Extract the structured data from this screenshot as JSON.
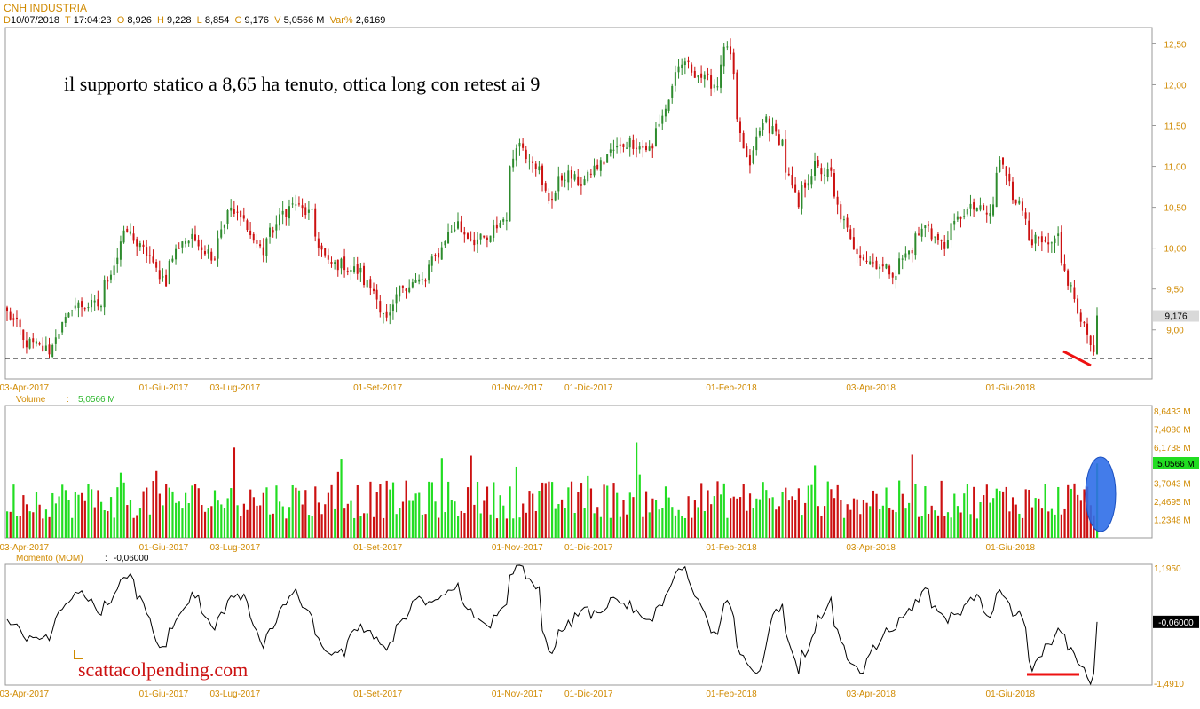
{
  "header": {
    "symbol": "CNH INDUSTRIA",
    "date_key": "D",
    "date": "10/07/2018",
    "time_key": "T",
    "time": "17:04:23",
    "open_key": "O",
    "open": "8,926",
    "high_key": "H",
    "high": "9,228",
    "low_key": "L",
    "low": "8,854",
    "close_key": "C",
    "close": "9,176",
    "vol_key": "V",
    "volume": "5,0566 M",
    "var_key": "Var%",
    "var": "2,6169"
  },
  "annotation": "il supporto statico a 8,65 ha tenuto, ottica long con retest ai 9",
  "watermark": "scattacolpending.com",
  "colors": {
    "up": "#2e8b2e",
    "down": "#cc1111",
    "vol_up": "#22dd22",
    "vol_down": "#cc1111",
    "axis_text": "#d08a00",
    "mark": "#ee1111",
    "ellipse": "#2f6ee8"
  },
  "x_ticks": [
    "03-Apr-2017",
    "01-Giu-2017",
    "03-Lug-2017",
    "01-Set-2017",
    "01-Nov-2017",
    "01-Dic-2017",
    "01-Feb-2018",
    "03-Apr-2018",
    "01-Giu-2018"
  ],
  "chart_data": [
    {
      "type": "candlestick",
      "title": "",
      "ylim": [
        8.4,
        12.7
      ],
      "yticks": [
        "12,50",
        "12,00",
        "11,50",
        "11,00",
        "10,50",
        "10,00",
        "9,50",
        "9,00"
      ],
      "ytick_values": [
        12.5,
        12.0,
        11.5,
        11.0,
        10.5,
        10.0,
        9.5,
        9.0
      ],
      "last_price_label": "9,176",
      "last_price": 9.176,
      "support_level": 8.65,
      "anchors": [
        {
          "d": "2017-03-27",
          "v": 9.2
        },
        {
          "d": "2017-04-03",
          "v": 8.85
        },
        {
          "d": "2017-04-13",
          "v": 8.75
        },
        {
          "d": "2017-04-24",
          "v": 9.3
        },
        {
          "d": "2017-05-05",
          "v": 9.3
        },
        {
          "d": "2017-05-12",
          "v": 9.9
        },
        {
          "d": "2017-05-17",
          "v": 10.2
        },
        {
          "d": "2017-05-26",
          "v": 9.9
        },
        {
          "d": "2017-06-02",
          "v": 9.6
        },
        {
          "d": "2017-06-09",
          "v": 10.1
        },
        {
          "d": "2017-06-16",
          "v": 10.1
        },
        {
          "d": "2017-06-23",
          "v": 9.9
        },
        {
          "d": "2017-06-30",
          "v": 10.5
        },
        {
          "d": "2017-07-07",
          "v": 10.3
        },
        {
          "d": "2017-07-14",
          "v": 9.95
        },
        {
          "d": "2017-07-21",
          "v": 10.35
        },
        {
          "d": "2017-07-28",
          "v": 10.55
        },
        {
          "d": "2017-08-04",
          "v": 10.4
        },
        {
          "d": "2017-08-11",
          "v": 9.8
        },
        {
          "d": "2017-08-18",
          "v": 9.8
        },
        {
          "d": "2017-08-25",
          "v": 9.7
        },
        {
          "d": "2017-09-01",
          "v": 9.45
        },
        {
          "d": "2017-09-06",
          "v": 9.1
        },
        {
          "d": "2017-09-13",
          "v": 9.55
        },
        {
          "d": "2017-09-22",
          "v": 9.6
        },
        {
          "d": "2017-09-29",
          "v": 10.0
        },
        {
          "d": "2017-10-06",
          "v": 10.3
        },
        {
          "d": "2017-10-13",
          "v": 10.1
        },
        {
          "d": "2017-10-20",
          "v": 10.1
        },
        {
          "d": "2017-10-27",
          "v": 10.4
        },
        {
          "d": "2017-11-01",
          "v": 11.3
        },
        {
          "d": "2017-11-08",
          "v": 11.1
        },
        {
          "d": "2017-11-15",
          "v": 10.6
        },
        {
          "d": "2017-11-22",
          "v": 10.9
        },
        {
          "d": "2017-11-29",
          "v": 10.8
        },
        {
          "d": "2017-12-06",
          "v": 11.0
        },
        {
          "d": "2017-12-13",
          "v": 11.2
        },
        {
          "d": "2017-12-20",
          "v": 11.3
        },
        {
          "d": "2017-12-29",
          "v": 11.2
        },
        {
          "d": "2018-01-05",
          "v": 11.8
        },
        {
          "d": "2018-01-12",
          "v": 12.3
        },
        {
          "d": "2018-01-19",
          "v": 12.1
        },
        {
          "d": "2018-01-26",
          "v": 12.0
        },
        {
          "d": "2018-01-31",
          "v": 12.5
        },
        {
          "d": "2018-02-05",
          "v": 11.5
        },
        {
          "d": "2018-02-09",
          "v": 10.95
        },
        {
          "d": "2018-02-16",
          "v": 11.6
        },
        {
          "d": "2018-02-23",
          "v": 11.3
        },
        {
          "d": "2018-03-02",
          "v": 10.5
        },
        {
          "d": "2018-03-09",
          "v": 11.0
        },
        {
          "d": "2018-03-16",
          "v": 10.9
        },
        {
          "d": "2018-03-23",
          "v": 10.2
        },
        {
          "d": "2018-03-30",
          "v": 9.9
        },
        {
          "d": "2018-04-06",
          "v": 9.8
        },
        {
          "d": "2018-04-13",
          "v": 9.7
        },
        {
          "d": "2018-04-20",
          "v": 10.0
        },
        {
          "d": "2018-04-27",
          "v": 10.3
        },
        {
          "d": "2018-05-04",
          "v": 10.0
        },
        {
          "d": "2018-05-11",
          "v": 10.4
        },
        {
          "d": "2018-05-18",
          "v": 10.5
        },
        {
          "d": "2018-05-24",
          "v": 10.4
        },
        {
          "d": "2018-05-29",
          "v": 11.05
        },
        {
          "d": "2018-06-05",
          "v": 10.6
        },
        {
          "d": "2018-06-12",
          "v": 10.1
        },
        {
          "d": "2018-06-19",
          "v": 10.0
        },
        {
          "d": "2018-06-22",
          "v": 10.1
        },
        {
          "d": "2018-06-29",
          "v": 9.4
        },
        {
          "d": "2018-07-05",
          "v": 8.95
        },
        {
          "d": "2018-07-09",
          "v": 8.7
        },
        {
          "d": "2018-07-10",
          "v": 9.18
        }
      ]
    },
    {
      "type": "bar",
      "title": "Volume",
      "value_label": "5,0566 M",
      "yticks": [
        "8,6433 M",
        "7,4086 M",
        "6,1738 M",
        "3,7043 M",
        "2,4695 M",
        "1,2348 M"
      ],
      "ytick_values": [
        8.6433,
        7.4086,
        6.1738,
        3.7043,
        2.4695,
        1.2348
      ],
      "ylim": [
        0,
        9.0
      ],
      "last_value": 5.0566,
      "last_label": "5,0566 M"
    },
    {
      "type": "line",
      "title": "Momento (MOM)",
      "value_label": "-0,06000",
      "yticks": [
        "1,1950",
        "-1,4910"
      ],
      "ytick_values": [
        1.195,
        -1.491
      ],
      "ylim": [
        -1.53,
        1.28
      ],
      "last_label": "-0,06000",
      "last_value": -0.06
    }
  ]
}
